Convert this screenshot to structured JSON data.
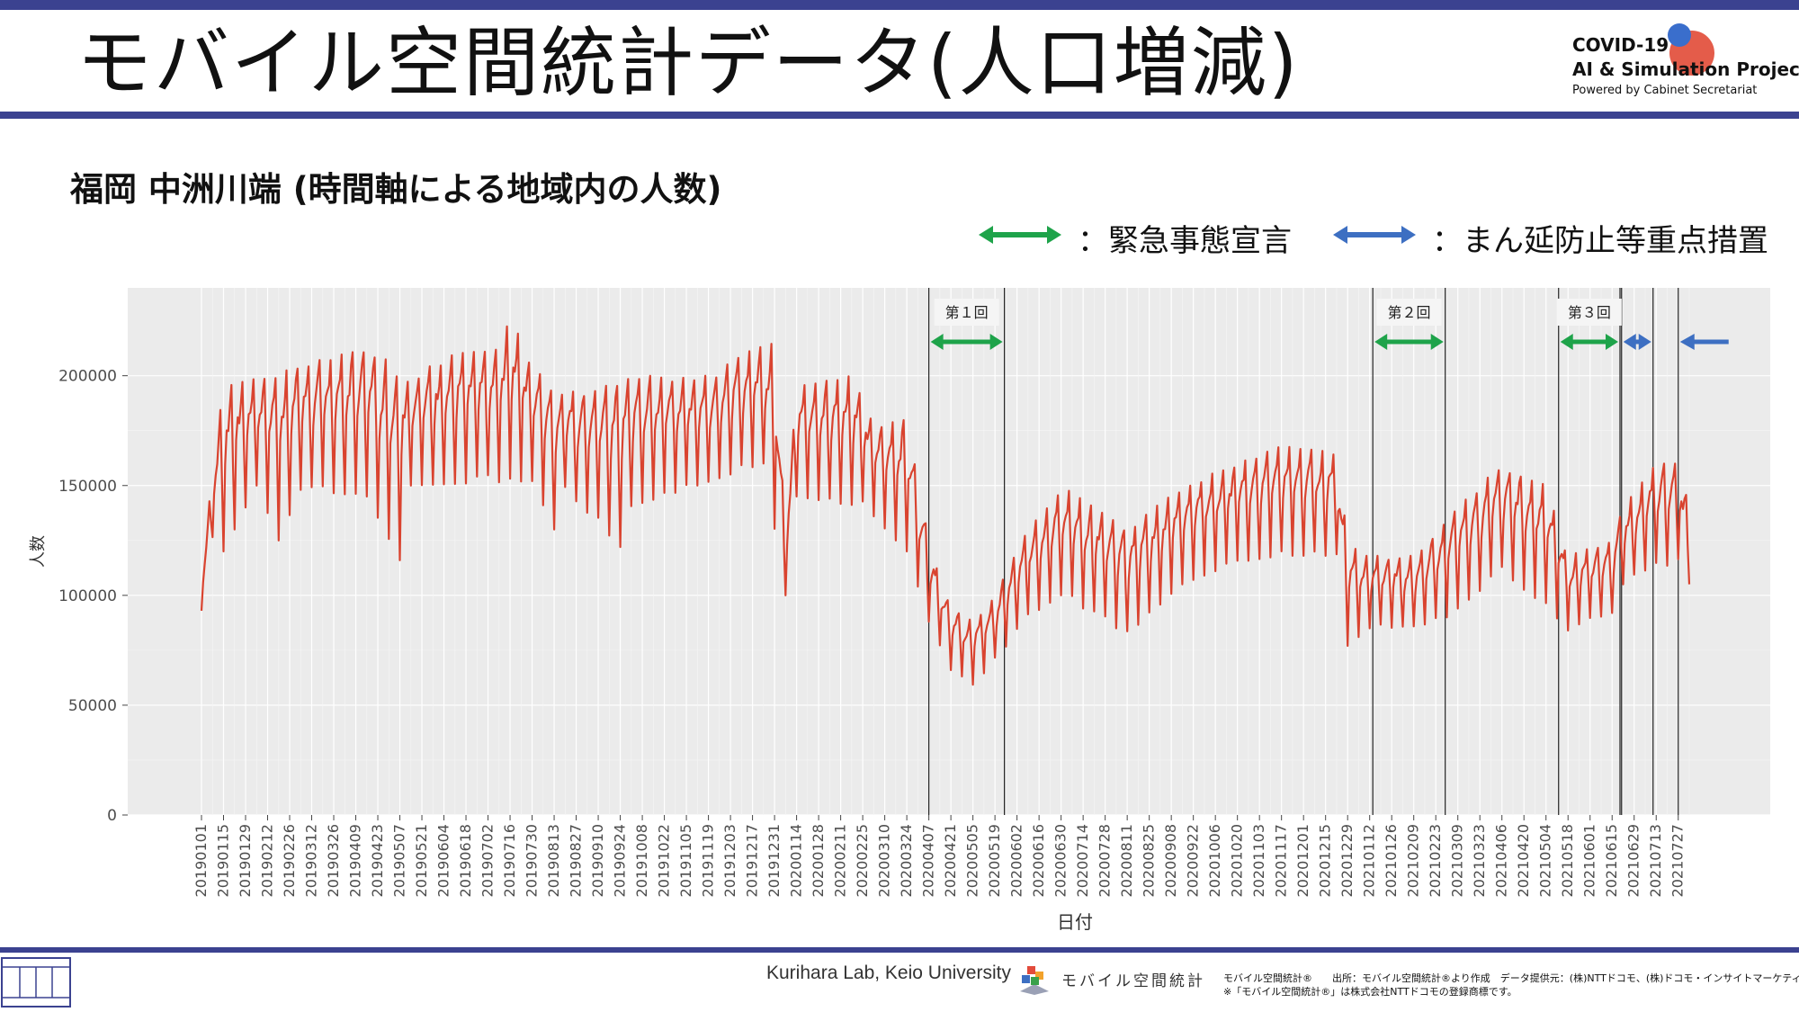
{
  "header": {
    "title": "モバイル空間統計データ(人口増減)",
    "brand_line1": "COVID-19",
    "brand_line2": "AI & Simulation Project",
    "brand_line3": "Powered by Cabinet Secretariat"
  },
  "subtitle": "福岡 中洲川端 (時間軸による地域内の人数)",
  "legend": {
    "emergency": "：緊急事態宣言",
    "priority": "：まん延防止等重点措置"
  },
  "colors": {
    "series": "#d9432f",
    "emergency_arrow": "#1ea34a",
    "priority_arrow": "#3d6fc2",
    "panel": "#ebebeb",
    "accent_bar": "#3b4290"
  },
  "footer": {
    "lab": "Kurihara Lab, Keio University",
    "mark": "モバイル空間統計",
    "note_line1": "モバイル空間統計®　　出所：モバイル空間統計®より作成　データ提供元：(株)NTTドコモ、(株)ドコモ・インサイトマーケティング",
    "note_line2": "※「モバイル空間統計®」は株式会社NTTドコモの登録商標です。"
  },
  "chart_data": {
    "type": "line",
    "title": "",
    "xlabel": "日付",
    "ylabel": "人数",
    "ylim": [
      0,
      240000
    ],
    "yticks": [
      0,
      50000,
      100000,
      150000,
      200000
    ],
    "ytick_labels": [
      "0",
      "50000",
      "100000",
      "150000",
      "200000"
    ],
    "x_start": "2019-01-01",
    "x_end": "2021-08-03",
    "xtick_labels": [
      "20190101",
      "20190115",
      "20190129",
      "20190212",
      "20190226",
      "20190312",
      "20190326",
      "20190409",
      "20190423",
      "20190507",
      "20190521",
      "20190604",
      "20190618",
      "20190702",
      "20190716",
      "20190730",
      "20190813",
      "20190827",
      "20190910",
      "20190924",
      "20191008",
      "20191022",
      "20191105",
      "20191119",
      "20191203",
      "20191217",
      "20191231",
      "20200114",
      "20200128",
      "20200211",
      "20200225",
      "20200310",
      "20200324",
      "20200407",
      "20200421",
      "20200505",
      "20200519",
      "20200602",
      "20200616",
      "20200630",
      "20200714",
      "20200728",
      "20200811",
      "20200825",
      "20200908",
      "20200922",
      "20201006",
      "20201020",
      "20201103",
      "20201117",
      "20201201",
      "20201215",
      "20201229",
      "20210112",
      "20210126",
      "20210209",
      "20210223",
      "20210309",
      "20210323",
      "20210406",
      "20210420",
      "20210504",
      "20210518",
      "20210601",
      "20210615",
      "20210629",
      "20210713",
      "20210727"
    ],
    "grid": true,
    "series": [
      {
        "name": "",
        "color": "#d9432f",
        "weekly_low": [
          {
            "date": "2019-01-01",
            "value": 93000
          },
          {
            "date": "2019-01-08",
            "value": 125000
          },
          {
            "date": "2019-01-15",
            "value": 120000
          },
          {
            "date": "2019-02-05",
            "value": 150000
          },
          {
            "date": "2019-02-19",
            "value": 125000
          },
          {
            "date": "2019-03-05",
            "value": 148000
          },
          {
            "date": "2019-04-16",
            "value": 145000
          },
          {
            "date": "2019-05-07",
            "value": 116000
          },
          {
            "date": "2019-05-14",
            "value": 150000
          },
          {
            "date": "2019-07-30",
            "value": 152000
          },
          {
            "date": "2019-08-13",
            "value": 130000
          },
          {
            "date": "2019-08-20",
            "value": 148000
          },
          {
            "date": "2019-09-24",
            "value": 122000
          },
          {
            "date": "2019-10-01",
            "value": 140000
          },
          {
            "date": "2019-12-24",
            "value": 160000
          },
          {
            "date": "2020-01-07",
            "value": 100000
          },
          {
            "date": "2020-01-14",
            "value": 145000
          },
          {
            "date": "2020-02-25",
            "value": 140000
          },
          {
            "date": "2020-03-24",
            "value": 120000
          },
          {
            "date": "2020-04-07",
            "value": 88000
          },
          {
            "date": "2020-04-21",
            "value": 66000
          },
          {
            "date": "2020-05-05",
            "value": 59000
          },
          {
            "date": "2020-05-19",
            "value": 70000
          },
          {
            "date": "2020-06-09",
            "value": 90000
          },
          {
            "date": "2020-06-30",
            "value": 100000
          },
          {
            "date": "2020-08-11",
            "value": 82000
          },
          {
            "date": "2020-09-15",
            "value": 105000
          },
          {
            "date": "2020-10-20",
            "value": 115000
          },
          {
            "date": "2020-11-17",
            "value": 118000
          },
          {
            "date": "2020-12-22",
            "value": 118000
          },
          {
            "date": "2020-12-29",
            "value": 77000
          },
          {
            "date": "2021-01-12",
            "value": 85000
          },
          {
            "date": "2021-02-09",
            "value": 84000
          },
          {
            "date": "2021-03-02",
            "value": 90000
          },
          {
            "date": "2021-04-06",
            "value": 110000
          },
          {
            "date": "2021-05-04",
            "value": 95000
          },
          {
            "date": "2021-05-18",
            "value": 84000
          },
          {
            "date": "2021-06-15",
            "value": 92000
          },
          {
            "date": "2021-06-22",
            "value": 105000
          },
          {
            "date": "2021-07-13",
            "value": 112000
          },
          {
            "date": "2021-07-27",
            "value": 115000
          },
          {
            "date": "2021-08-03",
            "value": 105000
          }
        ],
        "weekly_high": [
          {
            "date": "2019-01-01",
            "value": 105000
          },
          {
            "date": "2019-01-08",
            "value": 158000
          },
          {
            "date": "2019-01-15",
            "value": 195000
          },
          {
            "date": "2019-02-12",
            "value": 200000
          },
          {
            "date": "2019-03-05",
            "value": 205000
          },
          {
            "date": "2019-04-02",
            "value": 210000
          },
          {
            "date": "2019-04-16",
            "value": 213000
          },
          {
            "date": "2019-05-14",
            "value": 200000
          },
          {
            "date": "2019-06-11",
            "value": 210000
          },
          {
            "date": "2019-07-09",
            "value": 212000
          },
          {
            "date": "2019-07-16",
            "value": 227000
          },
          {
            "date": "2019-07-30",
            "value": 205000
          },
          {
            "date": "2019-08-13",
            "value": 195000
          },
          {
            "date": "2019-08-27",
            "value": 193000
          },
          {
            "date": "2019-10-08",
            "value": 200000
          },
          {
            "date": "2019-11-19",
            "value": 200000
          },
          {
            "date": "2019-12-17",
            "value": 212000
          },
          {
            "date": "2019-12-31",
            "value": 215000
          },
          {
            "date": "2020-01-07",
            "value": 130000
          },
          {
            "date": "2020-01-14",
            "value": 195000
          },
          {
            "date": "2020-02-18",
            "value": 200000
          },
          {
            "date": "2020-03-03",
            "value": 178000
          },
          {
            "date": "2020-03-24",
            "value": 180000
          },
          {
            "date": "2020-04-07",
            "value": 125000
          },
          {
            "date": "2020-04-21",
            "value": 95000
          },
          {
            "date": "2020-05-05",
            "value": 88000
          },
          {
            "date": "2020-05-19",
            "value": 100000
          },
          {
            "date": "2020-06-09",
            "value": 130000
          },
          {
            "date": "2020-06-30",
            "value": 150000
          },
          {
            "date": "2020-08-11",
            "value": 130000
          },
          {
            "date": "2020-09-15",
            "value": 150000
          },
          {
            "date": "2020-10-20",
            "value": 160000
          },
          {
            "date": "2020-11-17",
            "value": 168000
          },
          {
            "date": "2020-12-22",
            "value": 165000
          },
          {
            "date": "2020-12-29",
            "value": 125000
          },
          {
            "date": "2021-01-12",
            "value": 118000
          },
          {
            "date": "2021-02-09",
            "value": 118000
          },
          {
            "date": "2021-03-02",
            "value": 135000
          },
          {
            "date": "2021-04-06",
            "value": 160000
          },
          {
            "date": "2021-05-04",
            "value": 150000
          },
          {
            "date": "2021-05-18",
            "value": 118000
          },
          {
            "date": "2021-06-15",
            "value": 125000
          },
          {
            "date": "2021-06-22",
            "value": 140000
          },
          {
            "date": "2021-07-13",
            "value": 160000
          },
          {
            "date": "2021-07-27",
            "value": 160000
          },
          {
            "date": "2021-08-03",
            "value": 140000
          }
        ]
      }
    ],
    "events": [
      {
        "label": "第１回",
        "type": "emergency",
        "start": "2020-04-07",
        "end": "2020-05-25"
      },
      {
        "label": "第２回",
        "type": "emergency",
        "start": "2021-01-14",
        "end": "2021-03-01"
      },
      {
        "label": "第３回",
        "type": "emergency",
        "start": "2021-05-12",
        "end": "2021-06-20"
      },
      {
        "label": "",
        "type": "priority",
        "start": "2021-06-21",
        "end": "2021-07-11"
      },
      {
        "label": "",
        "type": "priority",
        "start": "2021-07-27",
        "end": "2021-08-31"
      }
    ]
  }
}
